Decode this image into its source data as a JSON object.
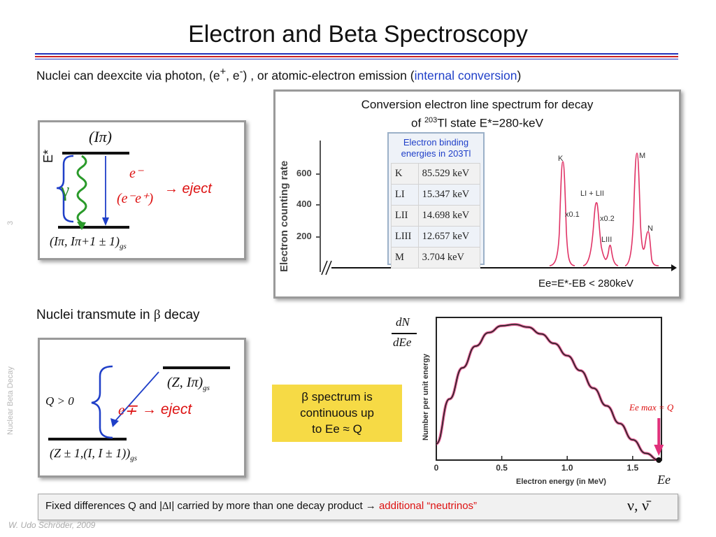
{
  "slide": {
    "title": "Electron and Beta Spectroscopy",
    "page_number": "3",
    "side_label": "Nuclear Beta Decay",
    "footer_author": "W. Udo Schröder, 2009"
  },
  "intro": {
    "prefix": "Nuclei can deexcite via photon, (e",
    "sup_plus": "+",
    "comma": ", e",
    "sup_minus": "-",
    "middle": ") , or atomic-electron emission (",
    "highlight": "internal conversion",
    "suffix": ")"
  },
  "decay_diagram": {
    "upper_level_label": "(Iπ)",
    "energy_label": "E*",
    "gamma_label": "γ",
    "electron_label": "e⁻",
    "pair_label": "(e⁻e⁺)",
    "eject_label": "→ eject",
    "ground_state_label": "(Iπ, Iπ+1 ± 1)",
    "ground_state_subscript": "gs"
  },
  "conversion_spectrum": {
    "title_line1": "Conversion electron line spectrum for decay",
    "title_line2_prefix": "of ",
    "title_line2_sup": "203",
    "title_line2_suffix": "Tl state E*=280-keV",
    "ylabel": "Electron counting rate",
    "yticks": [
      "600",
      "400",
      "200"
    ],
    "peak_labels": {
      "K": "K",
      "K_scale": "x0.1",
      "L": "LI + LII",
      "L_scale": "x0.2",
      "L3": "LIII",
      "M": "M",
      "N": "N"
    },
    "axis_caption": "Ee=E*-EB < 280keV",
    "binding_title_line1": "Electron binding",
    "binding_title_line2": "energies in 203Tl",
    "binding_energies": [
      {
        "shell": "K",
        "energy": "85.529 keV"
      },
      {
        "shell": "LI",
        "energy": "15.347 keV"
      },
      {
        "shell": "LII",
        "energy": "14.698 keV"
      },
      {
        "shell": "LIII",
        "energy": "12.657 keV"
      },
      {
        "shell": "M",
        "energy": "3.704 keV"
      }
    ]
  },
  "beta_section": {
    "heading_prefix": "Nuclei transmute in ",
    "heading_symbol": "β",
    "heading_suffix": " decay",
    "q_label": "Q > 0",
    "upper_state": "(Z, Iπ)",
    "upper_state_subscript": "gs",
    "emission": "e∓",
    "eject": "→ eject",
    "lower_state": "(Z ± 1,(I, I ± 1))",
    "lower_state_subscript": "gs"
  },
  "note": {
    "line1": "β spectrum is",
    "line2": "continuous up",
    "line3": "to Ee ≈ Q"
  },
  "beta_spectrum": {
    "dn_label": "dN",
    "de_label": "dEe",
    "ylabel": "Number per unit energy",
    "xlabel": "Electron energy  (in MeV)",
    "endpoint_label": "Ee max = Q",
    "ee_label": "Ee"
  },
  "chart_data": {
    "type": "line",
    "title": "",
    "xlabel": "Electron energy  (in MeV)",
    "ylabel": "Number per unit energy",
    "xlim": [
      0,
      1.72
    ],
    "xticks": [
      "0",
      "0.5",
      "1.0",
      "1.5"
    ],
    "x": [
      0,
      0.1,
      0.2,
      0.3,
      0.4,
      0.5,
      0.6,
      0.7,
      0.8,
      0.9,
      1.0,
      1.1,
      1.2,
      1.3,
      1.4,
      1.5,
      1.6,
      1.7
    ],
    "series": [
      {
        "values": [
          0.12,
          0.45,
          0.68,
          0.84,
          0.94,
          0.99,
          1.0,
          0.98,
          0.93,
          0.86,
          0.77,
          0.66,
          0.53,
          0.4,
          0.27,
          0.15,
          0.05,
          0.0
        ]
      }
    ],
    "colors": {
      "curve": "#222222",
      "overlay": "#e0307a",
      "arrow": "#e0307a"
    }
  },
  "bottom_note": {
    "prefix": "Fixed differences Q and |",
    "delta_symbol": "∆",
    "middle": "I| carried by more than one decay product ",
    "arrow": "→",
    "highlight": "additional “neutrinos”",
    "symbols": "ν, ν̄"
  }
}
